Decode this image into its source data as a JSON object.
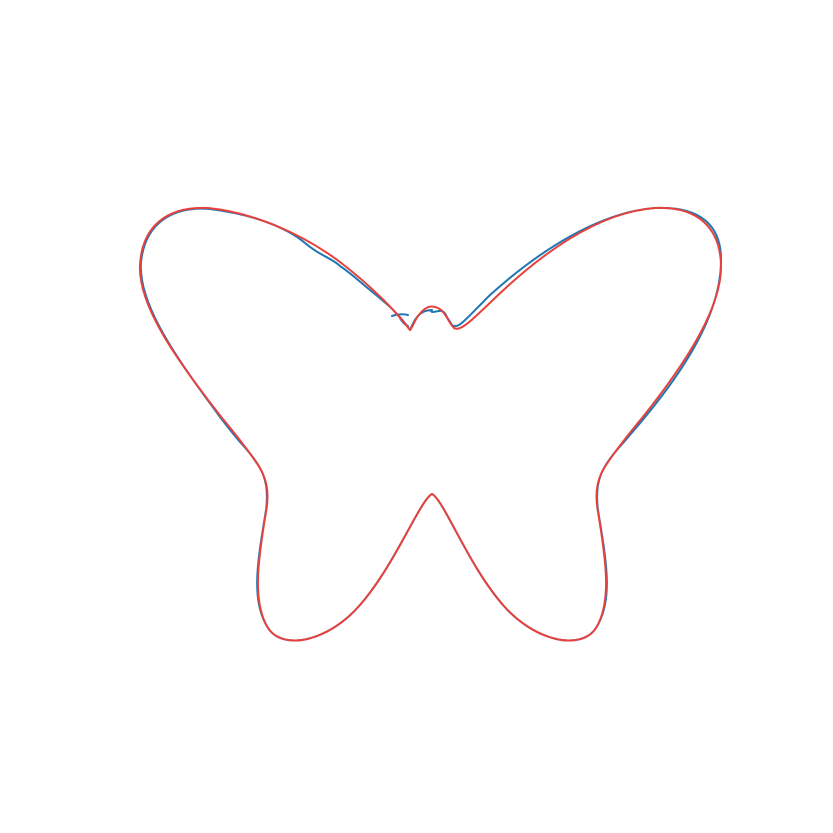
{
  "figure": {
    "background_color": "#ffffff",
    "curves": [
      {
        "name": "blue-curve",
        "color": "#1f77b4"
      },
      {
        "name": "red-curve",
        "color": "#e8413c"
      }
    ]
  }
}
